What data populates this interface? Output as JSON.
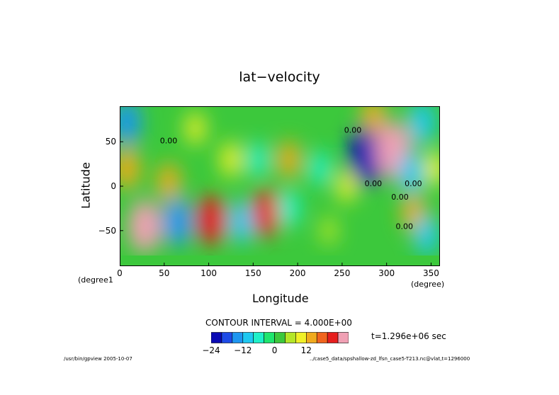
{
  "chart_data": {
    "type": "heatmap",
    "title": "lat−velocity",
    "xlabel": "Longitude",
    "ylabel": "Latitude",
    "x_unit": "(degree)",
    "y_unit": "(degree1",
    "xlim": [
      0,
      360
    ],
    "ylim": [
      -90,
      90
    ],
    "x_ticks": [
      "0",
      "50",
      "100",
      "150",
      "200",
      "250",
      "300",
      "350"
    ],
    "y_ticks": [
      "50",
      "0",
      "−50"
    ],
    "contour_interval_label": "CONTOUR INTERVAL = 4.000E+00",
    "time_label": "t=1.296e+06 sec",
    "contour_labels": [
      "0.00"
    ],
    "colorbar": {
      "levels": [
        -24,
        -20,
        -16,
        -12,
        -8,
        -4,
        0,
        4,
        8,
        12,
        16,
        20,
        24
      ],
      "tick_labels": [
        "−24",
        "−12",
        "0",
        "12"
      ],
      "tick_values": [
        -24,
        -12,
        0,
        12
      ],
      "colors": [
        "#0a0ab4",
        "#1e4be6",
        "#1e96f0",
        "#1ec8f0",
        "#1ef0c8",
        "#1ee66e",
        "#3cc83c",
        "#b4e628",
        "#f0f028",
        "#f0aa1e",
        "#f0641e",
        "#e61e1e",
        "#f0a0b4"
      ]
    },
    "features": [
      {
        "lon": 278,
        "lat": 35,
        "value": -28
      },
      {
        "lon": 308,
        "lat": 40,
        "value": 26
      },
      {
        "lon": 28,
        "lat": -45,
        "value": 22
      },
      {
        "lon": 65,
        "lat": -40,
        "value": -18
      },
      {
        "lon": 103,
        "lat": -38,
        "value": 19
      },
      {
        "lon": 137,
        "lat": -40,
        "value": -14
      },
      {
        "lon": 165,
        "lat": -30,
        "value": 18
      },
      {
        "lon": 190,
        "lat": -25,
        "value": -10
      },
      {
        "lon": 8,
        "lat": 72,
        "value": -16
      },
      {
        "lon": 8,
        "lat": 20,
        "value": 13
      },
      {
        "lon": 55,
        "lat": 5,
        "value": 10
      },
      {
        "lon": 340,
        "lat": 72,
        "value": -14
      },
      {
        "lon": 328,
        "lat": 15,
        "value": -14
      },
      {
        "lon": 330,
        "lat": -30,
        "value": 10
      },
      {
        "lon": 345,
        "lat": -55,
        "value": -12
      },
      {
        "lon": 190,
        "lat": 30,
        "value": 10
      },
      {
        "lon": 155,
        "lat": 30,
        "value": -8
      },
      {
        "lon": 125,
        "lat": 30,
        "value": 8
      },
      {
        "lon": 85,
        "lat": 65,
        "value": 6
      },
      {
        "lon": 225,
        "lat": 20,
        "value": -8
      },
      {
        "lon": 255,
        "lat": 0,
        "value": 6
      },
      {
        "lon": 285,
        "lat": 80,
        "value": 10
      },
      {
        "lon": 235,
        "lat": -50,
        "value": 3
      },
      {
        "lon": 355,
        "lat": 20,
        "value": 8
      }
    ],
    "grid": false
  },
  "footer": {
    "left": "/usr/bin/gpview  2005-10-07",
    "right": "../case5_data/spshallow-zd_lfsn_case5-T213.nc@vlat,t=1296000"
  }
}
